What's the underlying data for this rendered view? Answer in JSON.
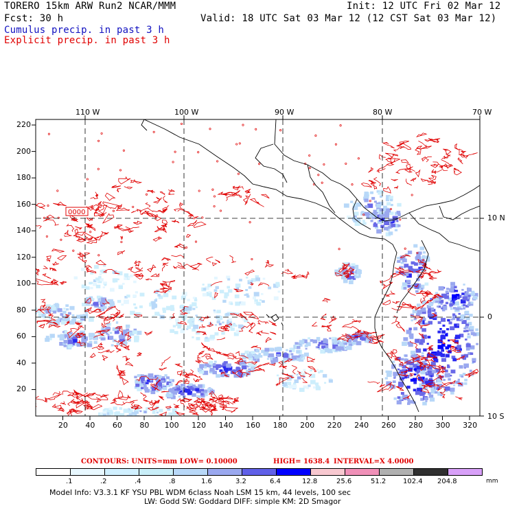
{
  "header": {
    "model": "TORERO  15km ARW   Run2   NCAR/MMM",
    "init": "Init: 12 UTC Fri 02 Mar 12",
    "fcst": "Fcst:   30 h",
    "valid": "Valid: 18 UTC Sat 03 Mar 12 (12 CST Sat 03 Mar 12)",
    "cumulus": "Cumulus precip. in past 3 h",
    "explicit": "Explicit precip. in past 3 h"
  },
  "colors": {
    "cumulus": "#1010c0",
    "explicit": "#e00000",
    "coast": "#000000"
  },
  "axes": {
    "top_lon_labels": [
      "110 W",
      "100 W",
      "90 W",
      "80 W",
      "70 W"
    ],
    "right_lat_labels": [
      "10 N",
      "0",
      "10 S"
    ],
    "y_ticks": [
      "20",
      "40",
      "60",
      "80",
      "100",
      "120",
      "140",
      "160",
      "180",
      "200",
      "220"
    ],
    "x_ticks": [
      "20",
      "40",
      "60",
      "80",
      "100",
      "120",
      "140",
      "160",
      "180",
      "200",
      "220",
      "240",
      "260",
      "280",
      "300",
      "320"
    ]
  },
  "box_label": "0000",
  "contour_info": {
    "contours": "CONTOURS:  UNITS=mm  LOW= 0.10000",
    "high": "HIGH=  1638.4",
    "interval": "INTERVAL=X  4.0000"
  },
  "colorbar": {
    "labels": [
      ".1",
      ".2",
      ".4",
      ".8",
      "1.6",
      "3.2",
      "6.4",
      "12.8",
      "25.6",
      "51.2",
      "102.4",
      "204.8"
    ],
    "unit": "mm",
    "colors": [
      "#ffffff",
      "#e8f8ff",
      "#d0f0ff",
      "#c8eef8",
      "#b8d8f8",
      "#9aa8ef",
      "#6060e8",
      "#0000ff",
      "#f8c8d0",
      "#f090b8",
      "#b0b0b0",
      "#303030",
      "#d8a0f8"
    ]
  },
  "footer": {
    "line1": "Model Info: V3.3.1    KF     YSU PBL   WDM 6class   Noah LSM  15 km,    44 levels,   100 sec",
    "line2": "LW: Godd SW: Goddard DIFF: simple KM: 2D Smagor"
  }
}
